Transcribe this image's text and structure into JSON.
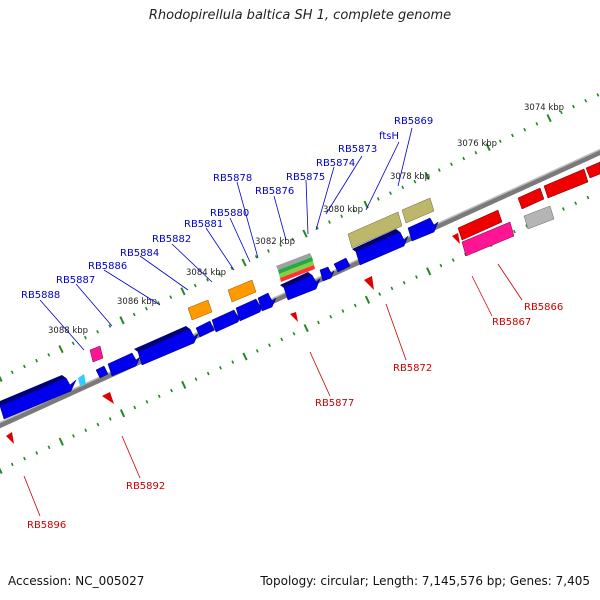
{
  "title": "Rhodopirellula baltica SH 1, complete genome",
  "footer": {
    "accession": "Accession: NC_005027",
    "summary": "Topology: circular; Length: 7,145,576 bp; Genes: 7,405"
  },
  "colors": {
    "forward_label": "#0000cc",
    "reverse_label": "#cc0000",
    "tick": "#228822",
    "backbone": "#888888"
  },
  "scale_labels": [
    "3074 kbp",
    "3076 kbp",
    "3078 kbp",
    "3080 kbp",
    "3082 kbp",
    "3084 kbp",
    "3086 kbp",
    "3088 kbp"
  ],
  "forward_labels": [
    "RB5869",
    "ftsH",
    "RB5873",
    "RB5874",
    "RB5875",
    "RB5876",
    "RB5878",
    "RB5880",
    "RB5881",
    "RB5882",
    "RB5884",
    "RB5886",
    "RB5887",
    "RB5888"
  ],
  "reverse_labels": [
    "RB5866",
    "RB5867",
    "RB5872",
    "RB5877",
    "RB5892",
    "RB5896"
  ]
}
